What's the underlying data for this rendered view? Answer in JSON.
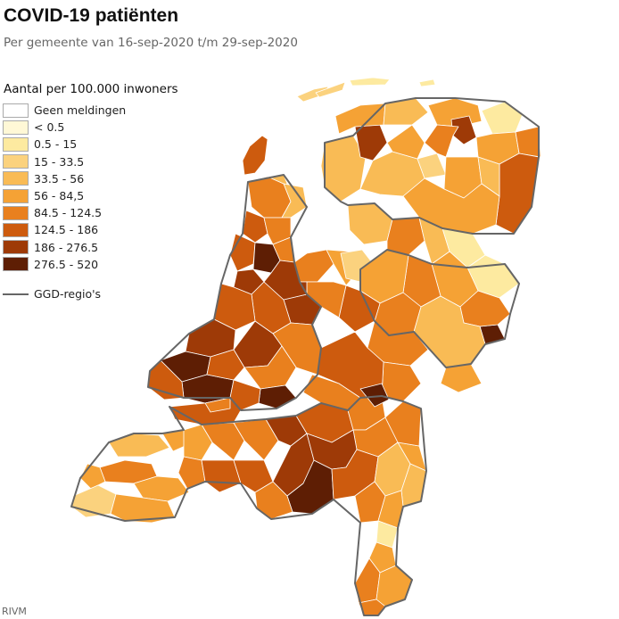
{
  "header": {
    "title": "COVID-19 patiënten",
    "subtitle": "Per gemeente van 16-sep-2020 t/m 29-sep-2020"
  },
  "legend": {
    "title": "Aantal per 100.000 inwoners",
    "items": [
      {
        "label": "Geen meldingen",
        "color": "#ffffff"
      },
      {
        "label": "< 0.5",
        "color": "#fff8d6"
      },
      {
        "label": "0.5 - 15",
        "color": "#fdeaa0"
      },
      {
        "label": "15 - 33.5",
        "color": "#fbd27e"
      },
      {
        "label": "33.5 - 56",
        "color": "#f9bb55"
      },
      {
        "label": "56 - 84,5",
        "color": "#f5a235"
      },
      {
        "label": "84.5 - 124.5",
        "color": "#e9801e"
      },
      {
        "label": "124.5 - 186",
        "color": "#cd5b0e"
      },
      {
        "label": "186 - 276.5",
        "color": "#9e3a07"
      },
      {
        "label": "276.5 - 520",
        "color": "#5e1e04"
      }
    ],
    "ggd_label": "GGD-regio's",
    "ggd_color": "#666666"
  },
  "source": "RIVM"
}
